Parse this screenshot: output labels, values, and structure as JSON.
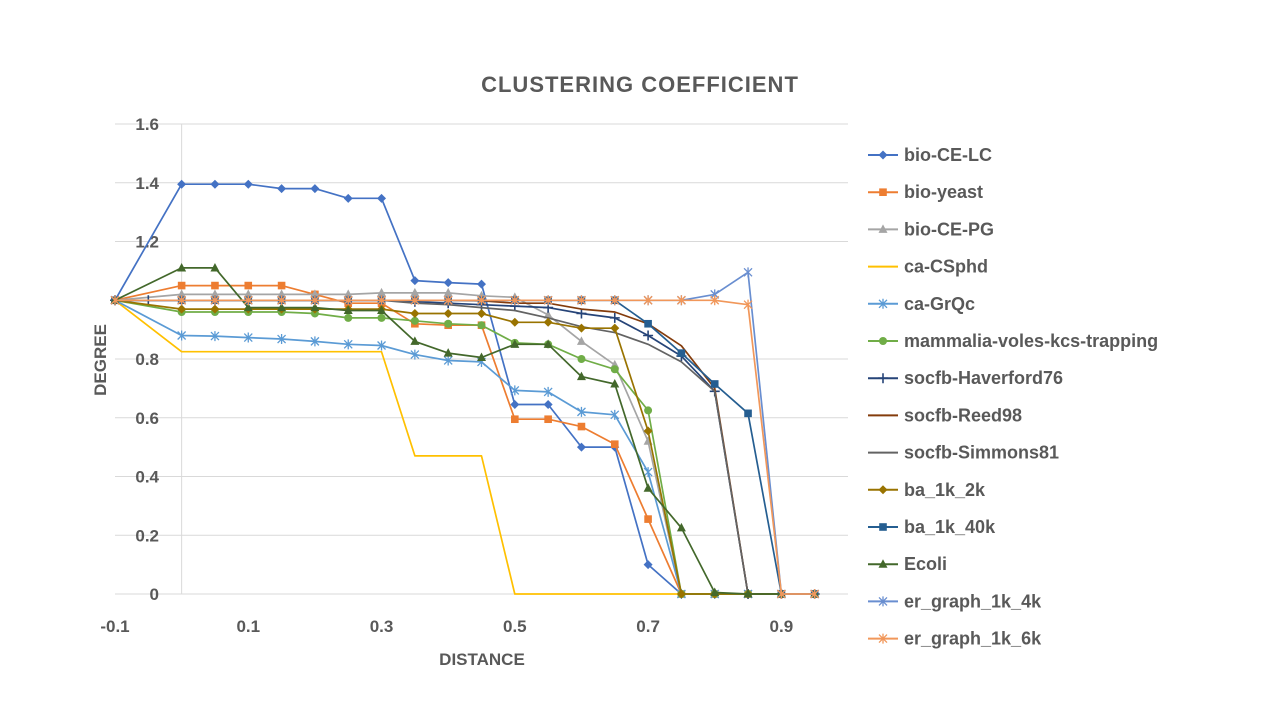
{
  "chart_data": {
    "type": "line",
    "title": "CLUSTERING COEFFICIENT",
    "xlabel": "DISTANCE",
    "ylabel": "DEGREE",
    "xlim": [
      -0.1,
      1.0
    ],
    "ylim": [
      0,
      1.6
    ],
    "x_ticks": [
      -0.1,
      0.1,
      0.3,
      0.5,
      0.7,
      0.9
    ],
    "x_tick_labels": [
      "-0.1",
      "0.1",
      "0.3",
      "0.5",
      "0.7",
      "0.9"
    ],
    "y_ticks": [
      0,
      0.2,
      0.4,
      0.6,
      0.8,
      1.2,
      1.4,
      1.6
    ],
    "y_tick_labels": [
      "0",
      "0.2",
      "0.4",
      "0.6",
      "0.8",
      "1.2",
      "1.4",
      "1.6"
    ],
    "grid": "horizontal",
    "legend_position": "right",
    "x": [
      -0.1,
      -0.05,
      0,
      0.05,
      0.1,
      0.15,
      0.2,
      0.25,
      0.3,
      0.35,
      0.4,
      0.45,
      0.5,
      0.55,
      0.6,
      0.65,
      0.7,
      0.75,
      0.8,
      0.85,
      0.9,
      0.95
    ],
    "series": [
      {
        "name": "bio-CE-LC",
        "color": "#4472c4",
        "marker": "diamond",
        "values": [
          1.0,
          null,
          1.395,
          1.395,
          1.395,
          1.38,
          1.38,
          1.347,
          1.347,
          1.067,
          1.06,
          1.055,
          0.645,
          0.645,
          0.5,
          0.5,
          0.1,
          0,
          0,
          0,
          0,
          0
        ]
      },
      {
        "name": "bio-yeast",
        "color": "#ed7d31",
        "marker": "square",
        "values": [
          1.0,
          null,
          1.05,
          1.05,
          1.05,
          1.05,
          1.02,
          0.99,
          0.99,
          0.92,
          0.915,
          0.915,
          0.595,
          0.595,
          0.57,
          0.51,
          0.255,
          0,
          0,
          0,
          0,
          0
        ]
      },
      {
        "name": "bio-CE-PG",
        "color": "#a5a5a5",
        "marker": "triangle",
        "values": [
          1.0,
          null,
          1.02,
          1.02,
          1.02,
          1.02,
          1.02,
          1.02,
          1.025,
          1.025,
          1.025,
          1.015,
          1.01,
          0.95,
          0.86,
          0.78,
          0.52,
          0,
          0,
          0,
          0,
          0
        ]
      },
      {
        "name": "ca-CSphd",
        "color": "#ffc000",
        "marker": "none",
        "values": [
          1.0,
          null,
          0.825,
          0.825,
          0.825,
          0.825,
          0.825,
          0.825,
          0.825,
          0.47,
          0.47,
          0.47,
          0,
          0,
          0,
          0,
          0,
          0,
          0,
          0,
          0,
          0
        ]
      },
      {
        "name": "ca-GrQc",
        "color": "#5b9bd5",
        "marker": "star",
        "values": [
          1.0,
          null,
          0.88,
          0.878,
          0.873,
          0.868,
          0.86,
          0.85,
          0.846,
          0.815,
          0.795,
          0.79,
          0.693,
          0.688,
          0.62,
          0.61,
          0.415,
          0,
          0,
          0,
          0,
          0
        ]
      },
      {
        "name": "mammalia-voles-kcs-trapping",
        "color": "#70ad47",
        "marker": "circle",
        "values": [
          1.0,
          null,
          0.96,
          0.96,
          0.96,
          0.96,
          0.955,
          0.94,
          0.94,
          0.93,
          0.92,
          0.915,
          0.855,
          0.85,
          0.8,
          0.765,
          0.625,
          0,
          0,
          0,
          0,
          0
        ]
      },
      {
        "name": "socfb-Haverford76",
        "color": "#264478",
        "marker": "plus",
        "values": [
          1.0,
          1.0,
          1.0,
          1.0,
          1.0,
          1.0,
          1.0,
          1.0,
          1.0,
          0.995,
          0.99,
          0.985,
          0.98,
          0.975,
          0.955,
          0.94,
          0.88,
          0.81,
          0.69,
          0,
          0,
          0
        ]
      },
      {
        "name": "socfb-Reed98",
        "color": "#843c0c",
        "marker": "none",
        "values": [
          1.0,
          1.0,
          1.0,
          1.0,
          1.0,
          1.0,
          1.0,
          1.0,
          1.0,
          1.0,
          1.0,
          0.998,
          0.99,
          0.99,
          0.97,
          0.96,
          0.92,
          0.845,
          0.7,
          0,
          0,
          0
        ]
      },
      {
        "name": "socfb-Simmons81",
        "color": "#636363",
        "marker": "none",
        "values": [
          1.0,
          1.0,
          1.0,
          1.0,
          1.0,
          1.0,
          1.0,
          1.0,
          1.0,
          0.99,
          0.985,
          0.975,
          0.965,
          0.94,
          0.91,
          0.89,
          0.85,
          0.79,
          0.69,
          0,
          0,
          0
        ]
      },
      {
        "name": "ba_1k_2k",
        "color": "#997300",
        "marker": "diamond",
        "values": [
          1.0,
          null,
          0.97,
          0.97,
          0.97,
          0.97,
          0.97,
          0.97,
          0.97,
          0.955,
          0.955,
          0.955,
          0.925,
          0.925,
          0.905,
          0.905,
          0.555,
          0,
          0,
          0,
          0,
          0
        ]
      },
      {
        "name": "ba_1k_40k",
        "color": "#255e91",
        "marker": "square",
        "values": [
          1.0,
          null,
          1.0,
          1.0,
          1.0,
          1.0,
          1.0,
          1.0,
          1.0,
          1.0,
          1.0,
          1.0,
          1.0,
          1.0,
          1.0,
          1.0,
          0.92,
          0.82,
          0.715,
          0.615,
          0,
          0
        ]
      },
      {
        "name": "Ecoli",
        "color": "#43682b",
        "marker": "triangle",
        "values": [
          1.0,
          null,
          1.11,
          1.11,
          0.975,
          0.975,
          0.975,
          0.965,
          0.965,
          0.86,
          0.82,
          0.805,
          0.85,
          0.85,
          0.74,
          0.715,
          0.36,
          0.225,
          0.005,
          0,
          0,
          0
        ]
      },
      {
        "name": "er_graph_1k_4k",
        "color": "#698ed0",
        "marker": "star",
        "values": [
          1.0,
          null,
          1.0,
          1.0,
          1.0,
          1.0,
          1.0,
          1.0,
          1.0,
          1.0,
          1.0,
          1.0,
          1.0,
          1.0,
          1.0,
          1.0,
          1.0,
          1.0,
          1.02,
          1.095,
          0,
          0
        ]
      },
      {
        "name": "er_graph_1k_6k",
        "color": "#f1975a",
        "marker": "star",
        "values": [
          1.0,
          null,
          1.0,
          1.0,
          1.0,
          1.0,
          1.0,
          1.0,
          1.0,
          1.0,
          1.0,
          1.0,
          1.0,
          1.0,
          1.0,
          1.0,
          1.0,
          1.0,
          1.0,
          0.985,
          0,
          0
        ]
      }
    ]
  }
}
